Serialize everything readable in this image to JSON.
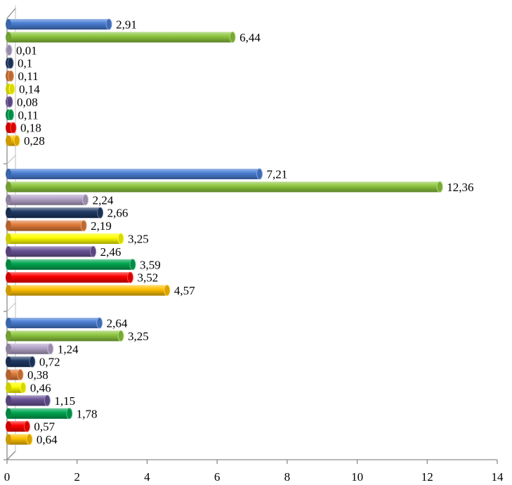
{
  "chart_data": {
    "type": "bar",
    "orientation": "horizontal",
    "style": "3d-cylinder",
    "title": "",
    "xlabel": "",
    "ylabel": "",
    "xlim": [
      0,
      14
    ],
    "x_ticks": [
      0,
      2,
      4,
      6,
      8,
      10,
      12,
      14
    ],
    "grid": false,
    "legend": "none",
    "groups": [
      {
        "bars": [
          {
            "value": 2.91,
            "label": "2,91",
            "color": "#4a7ed3"
          },
          {
            "value": 6.44,
            "label": "6,44",
            "color": "#8dc63f"
          },
          {
            "value": 0.01,
            "label": "0,01",
            "color": "#b3a2c7"
          },
          {
            "value": 0.1,
            "label": "0,1",
            "color": "#1f3864"
          },
          {
            "value": 0.11,
            "label": "0,11",
            "color": "#e07b39"
          },
          {
            "value": 0.14,
            "label": "0,14",
            "color": "#ffff00"
          },
          {
            "value": 0.08,
            "label": "0,08",
            "color": "#6a5296"
          },
          {
            "value": 0.11,
            "label": "0,11",
            "color": "#00a651"
          },
          {
            "value": 0.18,
            "label": "0,18",
            "color": "#ff0000"
          },
          {
            "value": 0.28,
            "label": "0,28",
            "color": "#ffc000"
          }
        ]
      },
      {
        "bars": [
          {
            "value": 7.21,
            "label": "7,21",
            "color": "#4a7ed3"
          },
          {
            "value": 12.36,
            "label": "12,36",
            "color": "#8dc63f"
          },
          {
            "value": 2.24,
            "label": "2,24",
            "color": "#b3a2c7"
          },
          {
            "value": 2.66,
            "label": "2,66",
            "color": "#1f3864"
          },
          {
            "value": 2.19,
            "label": "2,19",
            "color": "#e07b39"
          },
          {
            "value": 3.25,
            "label": "3,25",
            "color": "#ffff00"
          },
          {
            "value": 2.46,
            "label": "2,46",
            "color": "#6a5296"
          },
          {
            "value": 3.59,
            "label": "3,59",
            "color": "#00a651"
          },
          {
            "value": 3.52,
            "label": "3,52",
            "color": "#ff0000"
          },
          {
            "value": 4.57,
            "label": "4,57",
            "color": "#ffc000"
          }
        ]
      },
      {
        "bars": [
          {
            "value": 2.64,
            "label": "2,64",
            "color": "#4a7ed3"
          },
          {
            "value": 3.25,
            "label": "3,25",
            "color": "#8dc63f"
          },
          {
            "value": 1.24,
            "label": "1,24",
            "color": "#b3a2c7"
          },
          {
            "value": 0.72,
            "label": "0,72",
            "color": "#1f3864"
          },
          {
            "value": 0.38,
            "label": "0,38",
            "color": "#e07b39"
          },
          {
            "value": 0.46,
            "label": "0,46",
            "color": "#ffff00"
          },
          {
            "value": 1.15,
            "label": "1,15",
            "color": "#6a5296"
          },
          {
            "value": 1.78,
            "label": "1,78",
            "color": "#00a651"
          },
          {
            "value": 0.57,
            "label": "0,57",
            "color": "#ff0000"
          },
          {
            "value": 0.64,
            "label": "0,64",
            "color": "#ffc000"
          }
        ]
      }
    ]
  }
}
